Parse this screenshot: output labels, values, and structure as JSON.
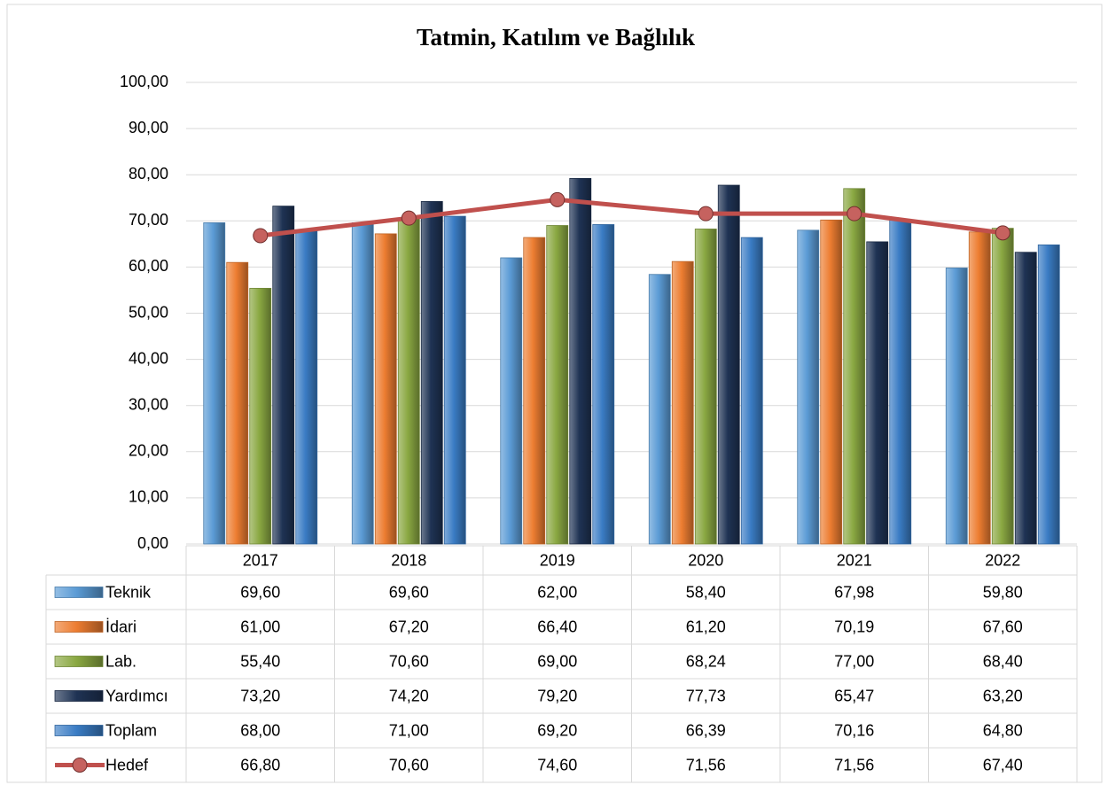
{
  "chart_data": {
    "type": "bar",
    "title": "Tatmin, Katılım ve Bağlılık",
    "categories": [
      "2017",
      "2018",
      "2019",
      "2020",
      "2021",
      "2022"
    ],
    "ylim": [
      0,
      100
    ],
    "yticks": [
      {
        "value": 0,
        "label": "0,00"
      },
      {
        "value": 10,
        "label": "10,00"
      },
      {
        "value": 20,
        "label": "20,00"
      },
      {
        "value": 30,
        "label": "30,00"
      },
      {
        "value": 40,
        "label": "40,00"
      },
      {
        "value": 50,
        "label": "50,00"
      },
      {
        "value": 60,
        "label": "60,00"
      },
      {
        "value": 70,
        "label": "70,00"
      },
      {
        "value": 80,
        "label": "80,00"
      },
      {
        "value": 90,
        "label": "90,00"
      },
      {
        "value": 100,
        "label": "100,00"
      }
    ],
    "grid": true,
    "series": [
      {
        "name": "Teknik",
        "type": "bar",
        "color": "#5b9bd5",
        "values": [
          69.6,
          69.6,
          62.0,
          58.4,
          67.98,
          59.8
        ],
        "value_labels": [
          "69,60",
          "69,60",
          "62,00",
          "58,40",
          "67,98",
          "59,80"
        ]
      },
      {
        "name": "İdari",
        "type": "bar",
        "color": "#ed7d31",
        "values": [
          61.0,
          67.2,
          66.4,
          61.2,
          70.19,
          67.6
        ],
        "value_labels": [
          "61,00",
          "67,20",
          "66,40",
          "61,20",
          "70,19",
          "67,60"
        ]
      },
      {
        "name": "Lab.",
        "type": "bar",
        "color": "#8aa842",
        "values": [
          55.4,
          70.6,
          69.0,
          68.24,
          77.0,
          68.4
        ],
        "value_labels": [
          "55,40",
          "70,60",
          "69,00",
          "68,24",
          "77,00",
          "68,40"
        ]
      },
      {
        "name": "Yardımcı",
        "type": "bar",
        "color": "#1f3354",
        "values": [
          73.2,
          74.2,
          79.2,
          77.73,
          65.47,
          63.2
        ],
        "value_labels": [
          "73,20",
          "74,20",
          "79,20",
          "77,73",
          "65,47",
          "63,20"
        ]
      },
      {
        "name": "Toplam",
        "type": "bar",
        "color": "#3a7cc4",
        "values": [
          68.0,
          71.0,
          69.2,
          66.39,
          70.16,
          64.8
        ],
        "value_labels": [
          "68,00",
          "71,00",
          "69,20",
          "66,39",
          "70,16",
          "64,80"
        ]
      },
      {
        "name": "Hedef",
        "type": "line",
        "color": "#c0504d",
        "values": [
          66.8,
          70.6,
          74.6,
          71.56,
          71.56,
          67.4
        ],
        "value_labels": [
          "66,80",
          "70,60",
          "74,60",
          "71,56",
          "71,56",
          "67,40"
        ]
      }
    ]
  }
}
